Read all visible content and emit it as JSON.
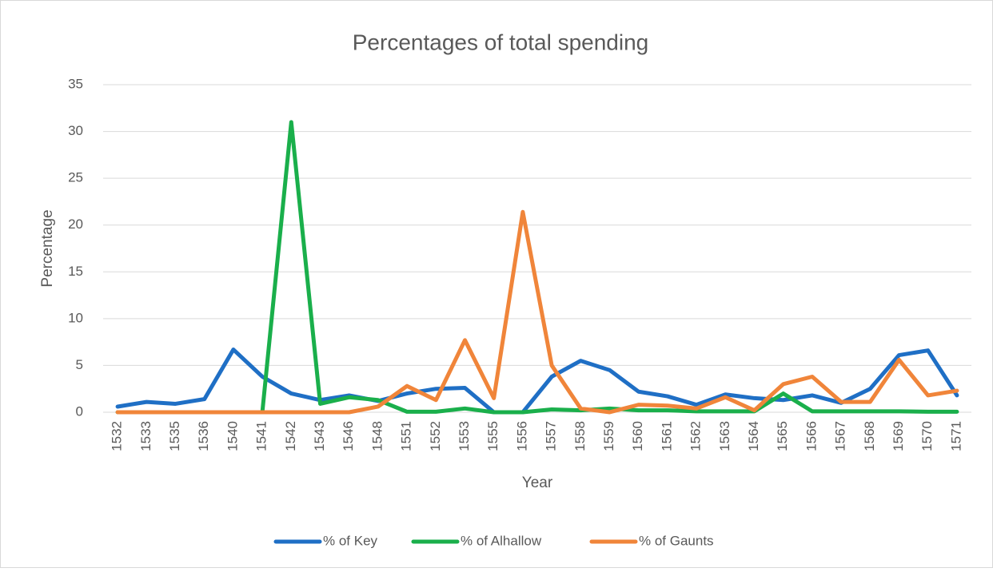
{
  "chart_data": {
    "type": "line",
    "title": "Percentages of total spending",
    "x_label": "Year",
    "y_label": "Percentage",
    "categories": [
      "1532",
      "1533",
      "1535",
      "1536",
      "1540",
      "1541",
      "1542",
      "1543",
      "1546",
      "1548",
      "1551",
      "1552",
      "1553",
      "1555",
      "1556",
      "1557",
      "1558",
      "1559",
      "1560",
      "1561",
      "1562",
      "1563",
      "1564",
      "1565",
      "1566",
      "1567",
      "1568",
      "1569",
      "1570",
      "1571"
    ],
    "series": [
      {
        "name": "% of Key",
        "color": "#1f6fc5",
        "values": [
          0.6,
          1.1,
          0.9,
          1.4,
          6.7,
          3.8,
          2.0,
          1.3,
          1.8,
          1.2,
          2.0,
          2.5,
          2.6,
          0,
          0,
          3.8,
          5.5,
          4.5,
          2.2,
          1.7,
          0.8,
          1.9,
          1.5,
          1.3,
          1.8,
          1.0,
          2.5,
          6.1,
          6.6,
          1.8
        ]
      },
      {
        "name": "% of Alhallow",
        "color": "#1aaf4b",
        "values": [
          0,
          0,
          0,
          0,
          0,
          0,
          31,
          0.9,
          1.6,
          1.3,
          0.05,
          0.05,
          0.4,
          0,
          0,
          0.3,
          0.2,
          0.4,
          0.2,
          0.2,
          0.1,
          0.1,
          0.1,
          2.0,
          0.1,
          0.1,
          0.1,
          0.1,
          0.05,
          0.05
        ]
      },
      {
        "name": "% of Gaunts",
        "color": "#f0853a",
        "values": [
          0,
          0,
          0,
          0,
          0,
          0,
          0,
          0,
          0,
          0.6,
          2.8,
          1.3,
          7.7,
          1.5,
          21.4,
          5.0,
          0.4,
          0,
          0.8,
          0.7,
          0.4,
          1.6,
          0.2,
          3.0,
          3.8,
          1.1,
          1.1,
          5.6,
          1.8,
          2.3
        ]
      }
    ],
    "ylim": [
      0,
      35
    ],
    "yticks": [
      0,
      5,
      10,
      15,
      20,
      25,
      30,
      35
    ],
    "grid": true,
    "legend": "bottom"
  }
}
